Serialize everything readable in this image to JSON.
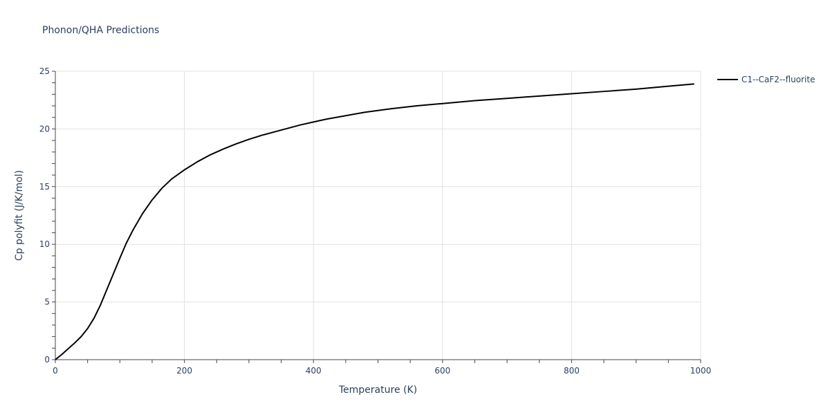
{
  "chart_data": {
    "type": "line",
    "title": "Phonon/QHA Predictions",
    "xlabel": "Temperature (K)",
    "ylabel": "Cp polyfit (J/K/mol)",
    "xlim": [
      0,
      1000
    ],
    "ylim": [
      0,
      25
    ],
    "x_ticks": [
      0,
      200,
      400,
      600,
      800,
      1000
    ],
    "y_ticks": [
      0,
      5,
      10,
      15,
      20,
      25
    ],
    "grid": true,
    "legend_position": "top-right",
    "series": [
      {
        "name": "C1--CaF2--fluorite",
        "color": "#000000",
        "x": [
          0,
          10,
          20,
          30,
          40,
          50,
          60,
          70,
          80,
          90,
          100,
          110,
          120,
          135,
          150,
          165,
          180,
          200,
          220,
          240,
          260,
          280,
          300,
          320,
          340,
          360,
          380,
          400,
          420,
          450,
          480,
          520,
          560,
          600,
          650,
          700,
          750,
          800,
          850,
          900,
          950,
          990
        ],
        "y": [
          0,
          0.45,
          0.95,
          1.45,
          2.0,
          2.7,
          3.6,
          4.75,
          6.1,
          7.45,
          8.8,
          10.1,
          11.2,
          12.65,
          13.85,
          14.85,
          15.65,
          16.45,
          17.15,
          17.75,
          18.25,
          18.7,
          19.1,
          19.45,
          19.75,
          20.05,
          20.35,
          20.6,
          20.85,
          21.15,
          21.45,
          21.75,
          22.0,
          22.2,
          22.45,
          22.65,
          22.85,
          23.05,
          23.25,
          23.45,
          23.7,
          23.9
        ]
      }
    ]
  }
}
